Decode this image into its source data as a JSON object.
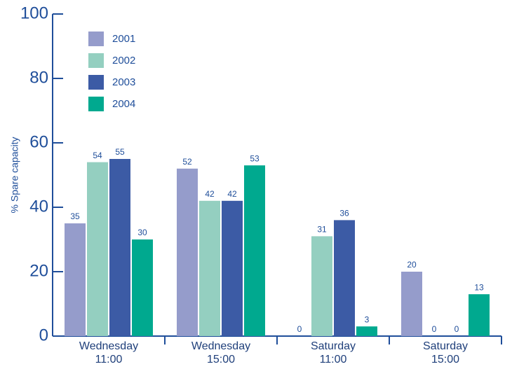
{
  "chart_data": {
    "type": "bar",
    "y_label": "% Spare capacity",
    "categories": [
      "Wednesday\n11:00",
      "Wednesday\n15:00",
      "Saturday\n11:00",
      "Saturday\n15:00"
    ],
    "series": [
      {
        "name": "2001",
        "color": "#959ccb",
        "values": [
          35,
          52,
          0,
          20
        ]
      },
      {
        "name": "2002",
        "color": "#94cfc0",
        "values": [
          54,
          42,
          31,
          0
        ]
      },
      {
        "name": "2003",
        "color": "#3c5ba5",
        "values": [
          55,
          42,
          36,
          0
        ]
      },
      {
        "name": "2004",
        "color": "#00a98f",
        "values": [
          30,
          53,
          3,
          13
        ]
      }
    ],
    "ylim": [
      0,
      100
    ],
    "yticks": [
      0,
      20,
      40,
      60,
      80,
      100
    ]
  }
}
